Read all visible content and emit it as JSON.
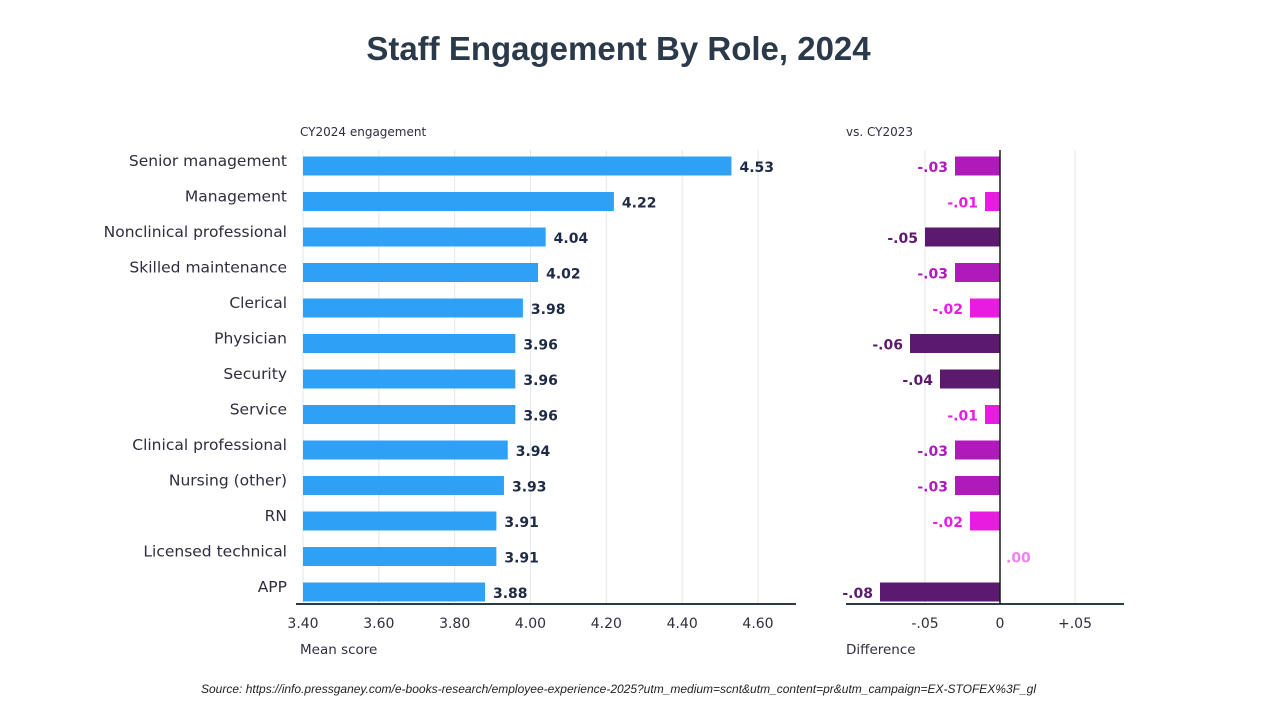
{
  "title": "Staff Engagement By Role, 2024",
  "source": "Source: https://info.pressganey.com/e-books-research/employee-experience-2025?utm_medium=scnt&utm_content=pr&utm_campaign=EX-STOFEX%3F_gl",
  "chart_data": [
    {
      "type": "bar",
      "orientation": "horizontal",
      "subtitle": "CY2024 engagement",
      "xlabel": "Mean score",
      "xlim": [
        3.4,
        4.7
      ],
      "ticks": [
        "3.40",
        "3.60",
        "3.80",
        "4.00",
        "4.20",
        "4.40",
        "4.60"
      ],
      "grid": true,
      "bar_color": "#2ea1f7",
      "categories": [
        "Senior management",
        "Management",
        "Nonclinical professional",
        "Skilled maintenance",
        "Clerical",
        "Physician",
        "Security",
        "Service",
        "Clinical professional",
        "Nursing (other)",
        "RN",
        "Licensed technical",
        "APP"
      ],
      "values": [
        4.53,
        4.22,
        4.04,
        4.02,
        3.98,
        3.96,
        3.96,
        3.96,
        3.94,
        3.93,
        3.91,
        3.91,
        3.88
      ],
      "labels": [
        "4.53",
        "4.22",
        "4.04",
        "4.02",
        "3.98",
        "3.96",
        "3.96",
        "3.96",
        "3.94",
        "3.93",
        "3.91",
        "3.91",
        "3.88"
      ]
    },
    {
      "type": "bar",
      "orientation": "horizontal",
      "subtitle": "vs. CY2023",
      "xlabel": "Difference",
      "xlim": [
        -0.1,
        0.08
      ],
      "ticks": [
        "-.05",
        "0",
        "+.05"
      ],
      "grid": true,
      "colors": {
        "small": "#e81ce0",
        "medium": "#b01aba",
        "large": "#5b1a6e",
        "zero": "#ee82ee"
      },
      "values": [
        -0.03,
        -0.01,
        -0.05,
        -0.03,
        -0.02,
        -0.06,
        -0.04,
        -0.01,
        -0.03,
        -0.03,
        -0.02,
        0.0,
        -0.08
      ],
      "labels": [
        "-.03",
        "-.01",
        "-.05",
        "-.03",
        "-.02",
        "-.06",
        "-.04",
        "-.01",
        "-.03",
        "-.03",
        "-.02",
        ".00",
        "-.08"
      ]
    }
  ]
}
